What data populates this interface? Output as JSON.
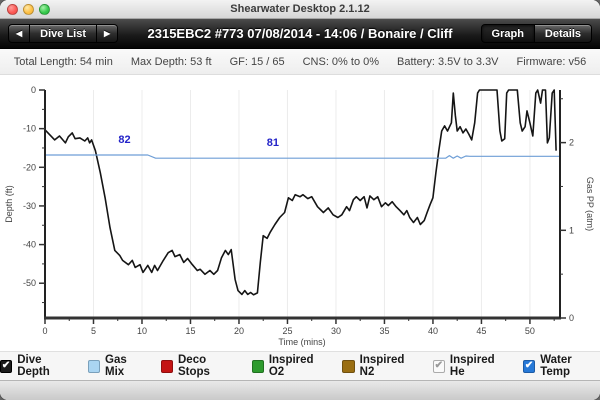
{
  "window": {
    "title": "Shearwater Desktop 2.1.12"
  },
  "toolbar": {
    "prev_icon": "◀",
    "next_icon": "▶",
    "dive_list_label": "Dive List",
    "dive_title": "2315EBC2 #773 07/08/2014 - 14:06  / Bonaire / Cliff",
    "graph_label": "Graph",
    "details_label": "Details"
  },
  "infobar": {
    "items": [
      "Total Length: 54 min",
      "Max Depth: 53 ft",
      "GF: 15 / 65",
      "CNS: 0% to 0%",
      "Battery: 3.5V to 3.3V",
      "Firmware: v56"
    ]
  },
  "chart_data": {
    "type": "line",
    "xlabel": "Time (mins)",
    "ylabel_left": "Depth (ft)",
    "ylabel_right": "Gas PP (atm)",
    "xlim": [
      0,
      53.1
    ],
    "ylim_left": [
      -59,
      0
    ],
    "ylim_right": [
      0,
      2.6
    ],
    "x_ticks_major": [
      0,
      5,
      10,
      15,
      20,
      25,
      30,
      35,
      40,
      45,
      50
    ],
    "depth_ticks_major": [
      0,
      -10,
      -20,
      -30,
      -40,
      -50
    ],
    "gas_ticks_major": [
      0,
      1,
      2
    ],
    "grid": "vertical-only",
    "series": [
      {
        "name": "Dive Depth",
        "unit": "ft",
        "color": "#151515",
        "points": [
          [
            0,
            -10.3
          ],
          [
            0.5,
            -11.6
          ],
          [
            1,
            -12.9
          ],
          [
            1.5,
            -11.9
          ],
          [
            2.1,
            -13.7
          ],
          [
            2.4,
            -12.1
          ],
          [
            2.8,
            -11.1
          ],
          [
            3.1,
            -12.6
          ],
          [
            3.6,
            -12.4
          ],
          [
            4.1,
            -13.2
          ],
          [
            4.4,
            -12.4
          ],
          [
            4.6,
            -13.7
          ],
          [
            4.8,
            -12.9
          ],
          [
            5.2,
            -15.7
          ],
          [
            5.7,
            -21.4
          ],
          [
            6.2,
            -27.9
          ],
          [
            6.7,
            -35.6
          ],
          [
            7.2,
            -41.5
          ],
          [
            7.7,
            -42.8
          ],
          [
            8,
            -44.1
          ],
          [
            8.6,
            -45.2
          ],
          [
            9,
            -44.1
          ],
          [
            9.3,
            -45.9
          ],
          [
            9.8,
            -45.2
          ],
          [
            10.1,
            -47.2
          ],
          [
            10.6,
            -45.4
          ],
          [
            11,
            -47.2
          ],
          [
            11.3,
            -45.4
          ],
          [
            11.6,
            -46.7
          ],
          [
            12.2,
            -44.1
          ],
          [
            12.7,
            -42.1
          ],
          [
            13.1,
            -41.5
          ],
          [
            13.4,
            -43.1
          ],
          [
            13.9,
            -42.6
          ],
          [
            14.3,
            -44.6
          ],
          [
            14.7,
            -43.6
          ],
          [
            15.2,
            -45.2
          ],
          [
            15.7,
            -46.7
          ],
          [
            16,
            -46.4
          ],
          [
            16.5,
            -47.7
          ],
          [
            17,
            -46.7
          ],
          [
            17.4,
            -47.7
          ],
          [
            17.8,
            -46.7
          ],
          [
            18.2,
            -43.4
          ],
          [
            18.6,
            -41.5
          ],
          [
            18.9,
            -42.6
          ],
          [
            19.2,
            -41.3
          ],
          [
            19.6,
            -49
          ],
          [
            19.9,
            -51.9
          ],
          [
            20.3,
            -52.9
          ],
          [
            20.6,
            -51.9
          ],
          [
            20.9,
            -52.9
          ],
          [
            21.2,
            -52.4
          ],
          [
            21.5,
            -53
          ],
          [
            21.9,
            -52.5
          ],
          [
            22,
            -49.8
          ],
          [
            22.2,
            -44.6
          ],
          [
            22.5,
            -37.7
          ],
          [
            22.9,
            -38.4
          ],
          [
            23.2,
            -36.9
          ],
          [
            23.7,
            -34.8
          ],
          [
            24.2,
            -33
          ],
          [
            24.7,
            -31.7
          ],
          [
            25.1,
            -27.9
          ],
          [
            25.5,
            -28.6
          ],
          [
            25.8,
            -27.1
          ],
          [
            26.3,
            -27.6
          ],
          [
            26.6,
            -27.1
          ],
          [
            27.1,
            -28.1
          ],
          [
            27.5,
            -27.6
          ],
          [
            28.1,
            -30.2
          ],
          [
            28.7,
            -31.7
          ],
          [
            29.2,
            -30.5
          ],
          [
            29.7,
            -32.3
          ],
          [
            30.2,
            -33
          ],
          [
            30.6,
            -32.3
          ],
          [
            31.1,
            -30.2
          ],
          [
            31.4,
            -31.2
          ],
          [
            31.8,
            -28.4
          ],
          [
            32.1,
            -27.6
          ],
          [
            32.5,
            -28.6
          ],
          [
            32.9,
            -27.6
          ],
          [
            33.2,
            -30.5
          ],
          [
            33.5,
            -27.4
          ],
          [
            33.9,
            -28.4
          ],
          [
            34.3,
            -27.6
          ],
          [
            34.7,
            -30.2
          ],
          [
            35.1,
            -29.2
          ],
          [
            35.4,
            -29.9
          ],
          [
            35.8,
            -28.9
          ],
          [
            36.2,
            -30.2
          ],
          [
            36.6,
            -31.2
          ],
          [
            37,
            -32.3
          ],
          [
            37.3,
            -31.2
          ],
          [
            37.6,
            -33
          ],
          [
            38,
            -34.3
          ],
          [
            38.4,
            -33
          ],
          [
            38.7,
            -34.8
          ],
          [
            39.1,
            -33.8
          ],
          [
            39.4,
            -31.7
          ],
          [
            39.7,
            -29.7
          ],
          [
            40,
            -27.9
          ],
          [
            40.3,
            -21.4
          ],
          [
            40.6,
            -15.7
          ],
          [
            40.9,
            -10.6
          ],
          [
            41.2,
            -9.3
          ],
          [
            41.5,
            -10.6
          ],
          [
            41.9,
            -8.5
          ],
          [
            42.1,
            -0.8
          ],
          [
            42.3,
            -6.5
          ],
          [
            42.5,
            -10.6
          ],
          [
            42.8,
            -9.5
          ],
          [
            43.1,
            -11.1
          ],
          [
            43.4,
            -10.1
          ],
          [
            43.7,
            -11.4
          ],
          [
            44,
            -12.9
          ],
          [
            44.3,
            -8.5
          ],
          [
            44.6,
            -0.8
          ],
          [
            44.8,
            0
          ],
          [
            46.6,
            0
          ],
          [
            46.9,
            -10.6
          ],
          [
            47.1,
            -13.2
          ],
          [
            47.4,
            -12.6
          ],
          [
            47.6,
            -0.8
          ],
          [
            47.8,
            0
          ],
          [
            48.7,
            0
          ],
          [
            49,
            -8.5
          ],
          [
            49.2,
            -10.6
          ],
          [
            49.5,
            -9.5
          ],
          [
            49.7,
            -5.4
          ],
          [
            50,
            -8.5
          ],
          [
            50.3,
            -11.9
          ],
          [
            50.6,
            -0.8
          ],
          [
            50.8,
            0
          ],
          [
            51.1,
            -3.4
          ],
          [
            51.3,
            0
          ],
          [
            51.6,
            0
          ],
          [
            51.8,
            -13.7
          ],
          [
            52,
            -12.4
          ],
          [
            52.3,
            -0.8
          ],
          [
            52.5,
            0
          ],
          [
            52.7,
            -15.7
          ]
        ]
      },
      {
        "name": "Water Temp",
        "unit": "F",
        "color": "#6e9ed6",
        "points": [
          [
            0,
            82
          ],
          [
            10.6,
            82
          ],
          [
            11.4,
            81
          ],
          [
            41.3,
            81
          ],
          [
            41.7,
            81.8
          ],
          [
            42.1,
            81
          ],
          [
            42.5,
            81.7
          ],
          [
            42.9,
            81
          ],
          [
            43.4,
            81.7
          ],
          [
            43.8,
            81.6
          ],
          [
            53,
            81.6
          ]
        ]
      }
    ],
    "annotations": [
      {
        "text": "82",
        "t": 8.2,
        "color": "#2323c8"
      },
      {
        "text": "81",
        "t": 23.5,
        "color": "#2323c8"
      }
    ]
  },
  "legend": {
    "check_glyph": "✔",
    "items": [
      {
        "label": "Dive Depth",
        "box": "#1c1c1c",
        "border": "#000000",
        "checked": true,
        "check": "#ffffff"
      },
      {
        "label": "Gas Mix",
        "box": "#aad5f2",
        "border": "#7aa0bb",
        "checked": false,
        "check": ""
      },
      {
        "label": "Deco Stops",
        "box": "#c41414",
        "border": "#8f0f0f",
        "checked": false,
        "check": ""
      },
      {
        "label": "Inspired O2",
        "box": "#2e9b2e",
        "border": "#217021",
        "checked": false,
        "check": ""
      },
      {
        "label": "Inspired N2",
        "box": "#9a6e12",
        "border": "#705010",
        "checked": false,
        "check": ""
      },
      {
        "label": "Inspired He",
        "box": "#fafafa",
        "border": "#ababab",
        "checked": true,
        "check": "#9a9a9a"
      },
      {
        "label": "Water Temp",
        "box": "#2679d8",
        "border": "#1c5ba6",
        "checked": true,
        "check": "#ffffff"
      }
    ]
  }
}
